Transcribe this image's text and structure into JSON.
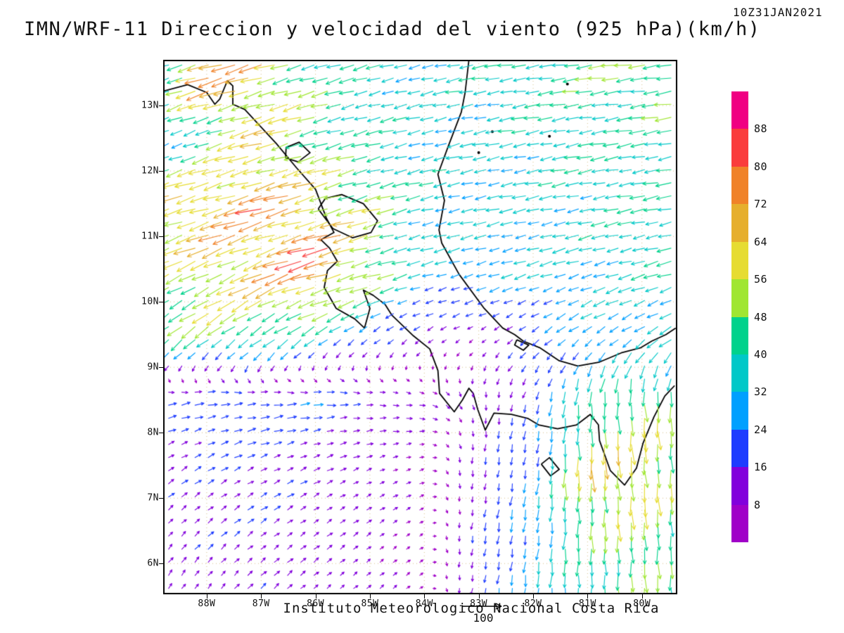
{
  "chart": {
    "title": "IMN/WRF-11 Direccion y velocidad del viento (925 hPa)(km/h)",
    "timestamp": "10Z31JAN2021",
    "footer": "Instituto Meteorologico Nacional Costa Rica",
    "vector_key_label": "100"
  },
  "chart_data": {
    "type": "vector-field-map",
    "title": "IMN/WRF-11 Direccion y velocidad del viento (925 hPa)(km/h)",
    "valid_time": "10Z31JAN2021",
    "level_hpa": 925,
    "units": "km/h",
    "source_text": "Instituto Meteorologico Nacional Costa Rica",
    "vector_key_value": 100,
    "lon_range": [
      -88.8,
      -79.35
    ],
    "lat_range": [
      5.53,
      13.7
    ],
    "lon_ticks": [
      {
        "label": "88W",
        "value": -88
      },
      {
        "label": "87W",
        "value": -87
      },
      {
        "label": "86W",
        "value": -86
      },
      {
        "label": "85W",
        "value": -85
      },
      {
        "label": "84W",
        "value": -84
      },
      {
        "label": "83W",
        "value": -83
      },
      {
        "label": "82W",
        "value": -82
      },
      {
        "label": "81W",
        "value": -81
      },
      {
        "label": "80W",
        "value": -80
      }
    ],
    "lat_ticks": [
      {
        "label": "13N",
        "value": 13
      },
      {
        "label": "12N",
        "value": 12
      },
      {
        "label": "11N",
        "value": 11
      },
      {
        "label": "10N",
        "value": 10
      },
      {
        "label": "9N",
        "value": 9
      },
      {
        "label": "8N",
        "value": 8
      },
      {
        "label": "7N",
        "value": 7
      },
      {
        "label": "6N",
        "value": 6
      }
    ],
    "colorbar": {
      "levels": [
        8,
        16,
        24,
        32,
        40,
        48,
        56,
        64,
        72,
        80,
        88
      ],
      "colors": [
        "#a000c8",
        "#8200dc",
        "#1e3cff",
        "#00a0ff",
        "#00c8c8",
        "#00d28c",
        "#a0e632",
        "#e6dc32",
        "#e6af2d",
        "#f08228",
        "#fa3c3c",
        "#f00082"
      ]
    },
    "wind_grid": {
      "lons": [
        -89,
        -88,
        -87,
        -86,
        -85,
        -84,
        -83,
        -82,
        -81,
        -80,
        -79
      ],
      "lats": [
        13.5,
        12.5,
        11.5,
        10.5,
        9.5,
        8.5,
        7.5,
        6.5,
        5.5
      ],
      "uv": [
        [
          [
            -28,
            -10
          ],
          [
            -70,
            -20
          ],
          [
            -62,
            -18
          ],
          [
            -42,
            -12
          ],
          [
            -36,
            -10
          ],
          [
            -34,
            -8
          ],
          [
            -36,
            -6
          ],
          [
            -40,
            -6
          ],
          [
            -44,
            -6
          ],
          [
            -46,
            -6
          ],
          [
            -48,
            -6
          ]
        ],
        [
          [
            -22,
            -10
          ],
          [
            -38,
            -14
          ],
          [
            -56,
            -16
          ],
          [
            -48,
            -14
          ],
          [
            -38,
            -10
          ],
          [
            -34,
            -8
          ],
          [
            -34,
            -7
          ],
          [
            -36,
            -7
          ],
          [
            -38,
            -7
          ],
          [
            -40,
            -7
          ],
          [
            -42,
            -7
          ]
        ],
        [
          [
            -58,
            -18
          ],
          [
            -64,
            -19
          ],
          [
            -70,
            -20
          ],
          [
            -62,
            -18
          ],
          [
            -50,
            -14
          ],
          [
            -36,
            -9
          ],
          [
            -33,
            -7
          ],
          [
            -34,
            -7
          ],
          [
            -36,
            -7
          ],
          [
            -38,
            -7
          ],
          [
            -40,
            -7
          ]
        ],
        [
          [
            -44,
            -22
          ],
          [
            -54,
            -24
          ],
          [
            -58,
            -26
          ],
          [
            -78,
            -22
          ],
          [
            -55,
            -16
          ],
          [
            -30,
            -8
          ],
          [
            -28,
            -8
          ],
          [
            -30,
            -9
          ],
          [
            -33,
            -10
          ],
          [
            -36,
            -10
          ],
          [
            -38,
            -10
          ]
        ],
        [
          [
            -34,
            -27
          ],
          [
            -36,
            -28
          ],
          [
            -36,
            -26
          ],
          [
            -28,
            -20
          ],
          [
            -18,
            -14
          ],
          [
            -10,
            -7
          ],
          [
            -8,
            -5
          ],
          [
            -14,
            -12
          ],
          [
            -22,
            -16
          ],
          [
            -28,
            -18
          ],
          [
            -32,
            -20
          ]
        ],
        [
          [
            18,
            4
          ],
          [
            22,
            4
          ],
          [
            24,
            3
          ],
          [
            22,
            2
          ],
          [
            16,
            0
          ],
          [
            10,
            -2
          ],
          [
            2,
            -10
          ],
          [
            -6,
            -18
          ],
          [
            -2,
            -40
          ],
          [
            3,
            -52
          ],
          [
            0,
            -42
          ]
        ],
        [
          [
            12,
            8
          ],
          [
            14,
            8
          ],
          [
            15,
            7
          ],
          [
            13,
            6
          ],
          [
            10,
            4
          ],
          [
            7,
            2
          ],
          [
            -2,
            -14
          ],
          [
            -4,
            -24
          ],
          [
            2,
            -62
          ],
          [
            4,
            -60
          ],
          [
            0,
            -45
          ]
        ],
        [
          [
            9,
            10
          ],
          [
            11,
            10
          ],
          [
            12,
            9
          ],
          [
            11,
            8
          ],
          [
            8,
            6
          ],
          [
            5,
            3
          ],
          [
            -3,
            -16
          ],
          [
            -4,
            -28
          ],
          [
            0,
            -45
          ],
          [
            3,
            -50
          ],
          [
            0,
            -40
          ]
        ],
        [
          [
            6,
            11
          ],
          [
            8,
            11
          ],
          [
            10,
            10
          ],
          [
            9,
            8
          ],
          [
            7,
            6
          ],
          [
            4,
            3
          ],
          [
            -3,
            -18
          ],
          [
            -3,
            -30
          ],
          [
            0,
            -40
          ],
          [
            2,
            -45
          ],
          [
            0,
            -38
          ]
        ]
      ]
    },
    "coastlines": [
      [
        [
          -88.8,
          13.22
        ],
        [
          -88.35,
          13.32
        ],
        [
          -88.0,
          13.2
        ],
        [
          -87.85,
          13.02
        ],
        [
          -87.76,
          13.1
        ],
        [
          -87.62,
          13.38
        ],
        [
          -87.52,
          13.3
        ],
        [
          -87.52,
          13.02
        ],
        [
          -87.3,
          12.94
        ],
        [
          -87.1,
          12.76
        ],
        [
          -86.72,
          12.42
        ],
        [
          -86.35,
          12.05
        ],
        [
          -86.0,
          11.72
        ],
        [
          -85.8,
          11.28
        ],
        [
          -85.66,
          11.06
        ],
        [
          -85.9,
          10.95
        ],
        [
          -85.74,
          10.82
        ],
        [
          -85.6,
          10.62
        ],
        [
          -85.78,
          10.48
        ],
        [
          -85.84,
          10.22
        ],
        [
          -85.62,
          9.9
        ],
        [
          -85.28,
          9.74
        ],
        [
          -85.1,
          9.6
        ],
        [
          -85.0,
          9.9
        ],
        [
          -85.12,
          10.18
        ],
        [
          -84.94,
          10.1
        ],
        [
          -84.72,
          9.96
        ],
        [
          -84.6,
          9.8
        ],
        [
          -84.2,
          9.48
        ],
        [
          -83.9,
          9.28
        ],
        [
          -83.75,
          8.95
        ],
        [
          -83.72,
          8.6
        ],
        [
          -83.45,
          8.32
        ],
        [
          -83.3,
          8.5
        ],
        [
          -83.18,
          8.68
        ],
        [
          -83.1,
          8.6
        ],
        [
          -83.02,
          8.36
        ],
        [
          -82.88,
          8.04
        ],
        [
          -82.72,
          8.3
        ],
        [
          -82.4,
          8.28
        ],
        [
          -82.1,
          8.22
        ],
        [
          -81.9,
          8.12
        ],
        [
          -81.55,
          8.06
        ],
        [
          -81.2,
          8.12
        ],
        [
          -80.95,
          8.28
        ],
        [
          -80.8,
          8.12
        ],
        [
          -80.78,
          7.88
        ],
        [
          -80.58,
          7.42
        ],
        [
          -80.32,
          7.2
        ],
        [
          -80.1,
          7.46
        ],
        [
          -79.98,
          7.84
        ],
        [
          -79.78,
          8.24
        ],
        [
          -79.58,
          8.56
        ],
        [
          -79.4,
          8.72
        ]
      ],
      [
        [
          -83.18,
          13.7
        ],
        [
          -83.25,
          13.2
        ],
        [
          -83.32,
          12.9
        ],
        [
          -83.55,
          12.4
        ],
        [
          -83.75,
          11.95
        ],
        [
          -83.63,
          11.55
        ],
        [
          -83.73,
          11.1
        ],
        [
          -83.68,
          10.9
        ],
        [
          -83.36,
          10.42
        ],
        [
          -82.9,
          9.9
        ],
        [
          -82.56,
          9.6
        ],
        [
          -82.34,
          9.5
        ],
        [
          -82.18,
          9.4
        ],
        [
          -81.88,
          9.3
        ],
        [
          -81.52,
          9.1
        ],
        [
          -81.18,
          9.02
        ],
        [
          -80.78,
          9.08
        ],
        [
          -80.38,
          9.22
        ],
        [
          -80.02,
          9.3
        ],
        [
          -79.82,
          9.4
        ],
        [
          -79.56,
          9.5
        ],
        [
          -79.38,
          9.6
        ]
      ],
      [
        [
          -85.95,
          11.42
        ],
        [
          -85.68,
          11.12
        ],
        [
          -85.32,
          10.98
        ],
        [
          -84.98,
          11.06
        ],
        [
          -84.86,
          11.24
        ],
        [
          -85.12,
          11.5
        ],
        [
          -85.52,
          11.64
        ],
        [
          -85.82,
          11.58
        ],
        [
          -85.95,
          11.42
        ]
      ],
      [
        [
          -86.55,
          12.2
        ],
        [
          -86.32,
          12.14
        ],
        [
          -86.1,
          12.28
        ],
        [
          -86.3,
          12.44
        ],
        [
          -86.54,
          12.36
        ],
        [
          -86.55,
          12.2
        ]
      ],
      [
        [
          -82.3,
          9.42
        ],
        [
          -82.08,
          9.34
        ],
        [
          -82.18,
          9.26
        ],
        [
          -82.34,
          9.34
        ],
        [
          -82.3,
          9.42
        ]
      ],
      [
        [
          -81.85,
          7.52
        ],
        [
          -81.68,
          7.34
        ],
        [
          -81.52,
          7.44
        ],
        [
          -81.7,
          7.62
        ],
        [
          -81.85,
          7.52
        ]
      ]
    ],
    "island_dots": [
      [
        -81.37,
        13.33
      ],
      [
        -81.7,
        12.53
      ],
      [
        -83.0,
        12.28
      ],
      [
        -82.75,
        12.6
      ]
    ]
  }
}
